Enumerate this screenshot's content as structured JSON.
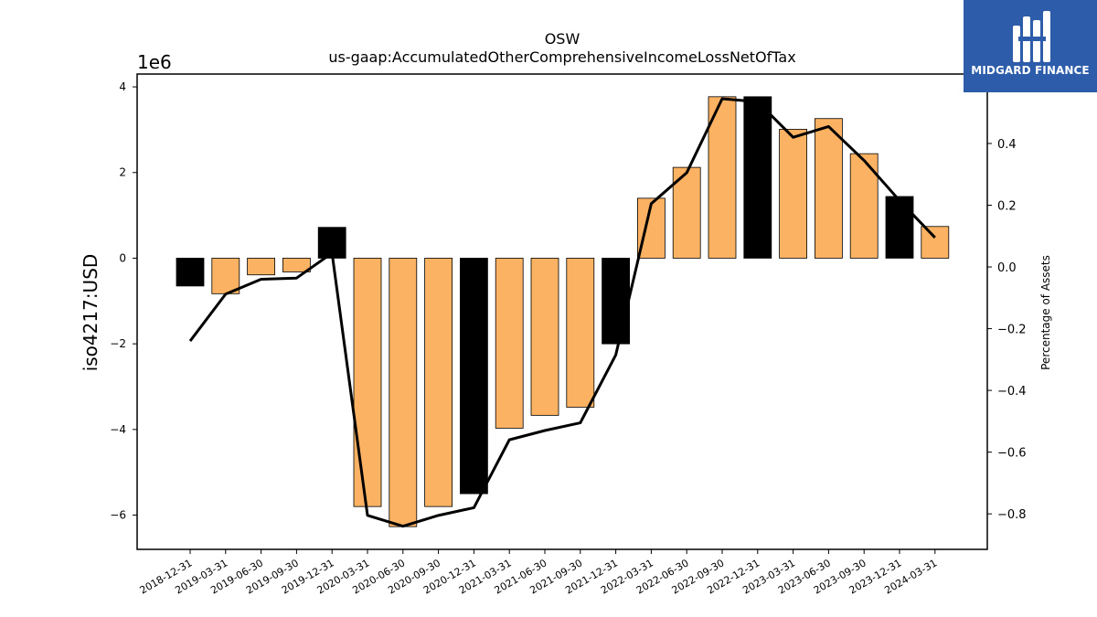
{
  "chart_data": {
    "type": "bar",
    "title": "OSW",
    "subtitle": "us-gaap:AccumulatedOtherComprehensiveIncomeLossNetOfTax",
    "ylabel": "iso4217:USD",
    "y_offset_label": "1e6",
    "y2label": "Percentage of Assets",
    "categories": [
      "2018-12-31",
      "2019-03-31",
      "2019-06-30",
      "2019-09-30",
      "2019-12-31",
      "2020-03-31",
      "2020-06-30",
      "2020-09-30",
      "2020-12-31",
      "2021-03-31",
      "2021-06-30",
      "2021-09-30",
      "2021-12-31",
      "2022-03-31",
      "2022-06-30",
      "2022-09-30",
      "2022-12-31",
      "2023-03-31",
      "2023-06-30",
      "2023-09-30",
      "2023-12-31",
      "2024-03-31"
    ],
    "values": [
      -650000,
      -830000,
      -390000,
      -320000,
      720000,
      -5800000,
      -6270000,
      -5800000,
      -5500000,
      -3970000,
      -3670000,
      -3480000,
      -2000000,
      1400000,
      2120000,
      3770000,
      3770000,
      3010000,
      3260000,
      2440000,
      1440000,
      740000
    ],
    "bar_colors": [
      "#000000",
      "#fbb262",
      "#fbb262",
      "#fbb262",
      "#000000",
      "#fbb262",
      "#fbb262",
      "#fbb262",
      "#000000",
      "#fbb262",
      "#fbb262",
      "#fbb262",
      "#000000",
      "#fbb262",
      "#fbb262",
      "#fbb262",
      "#000000",
      "#fbb262",
      "#fbb262",
      "#fbb262",
      "#000000",
      "#fbb262"
    ],
    "ylim": [
      -6800000.0,
      4300000.0
    ],
    "yticks": [
      -6000000,
      -4000000,
      -2000000,
      0,
      2000000,
      4000000
    ],
    "ytick_labels": [
      "−6",
      "−4",
      "−2",
      "0",
      "2",
      "4"
    ],
    "series": [
      {
        "values": [
          -0.24,
          -0.088,
          -0.04,
          -0.036,
          0.045,
          -0.805,
          -0.84,
          -0.805,
          -0.78,
          -0.56,
          -0.53,
          -0.505,
          -0.285,
          0.205,
          0.305,
          0.545,
          0.535,
          0.42,
          0.455,
          0.345,
          0.215,
          0.095
        ],
        "color": "#000000"
      }
    ],
    "y2lim": [
      -0.915,
      0.625
    ],
    "y2ticks": [
      -0.8,
      -0.6,
      -0.4,
      -0.2,
      0.0,
      0.2,
      0.4
    ],
    "y2tick_labels": [
      "−0.8",
      "−0.6",
      "−0.4",
      "−0.2",
      "0.0",
      "0.2",
      "0.4"
    ],
    "grid": false,
    "legend": "none"
  },
  "logo": {
    "text": "MIDGARD FINANCE"
  }
}
